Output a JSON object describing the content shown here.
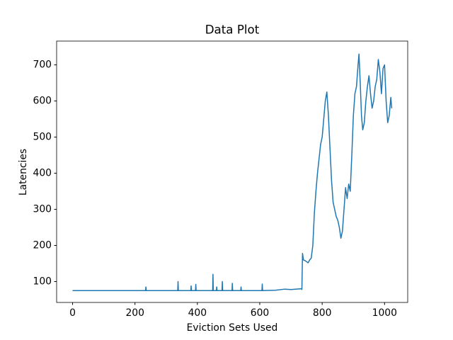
{
  "chart_data": {
    "type": "line",
    "title": "Data Plot",
    "x_label": "Eviction Sets Used",
    "y_label": "Latencies",
    "x": [
      0,
      234,
      235,
      236,
      337,
      338,
      339,
      379,
      380,
      381,
      394,
      395,
      396,
      449,
      450,
      451,
      461,
      462,
      463,
      479,
      480,
      481,
      511,
      512,
      513,
      539,
      540,
      541,
      607,
      608,
      609,
      650,
      680,
      700,
      734,
      735,
      737,
      740,
      745,
      750,
      755,
      760,
      765,
      770,
      775,
      780,
      785,
      790,
      795,
      800,
      805,
      810,
      815,
      820,
      825,
      830,
      835,
      840,
      845,
      850,
      855,
      860,
      865,
      870,
      875,
      880,
      885,
      890,
      895,
      900,
      905,
      910,
      915,
      918,
      922,
      926,
      930,
      935,
      940,
      945,
      950,
      955,
      960,
      965,
      970,
      975,
      980,
      985,
      990,
      995,
      1000,
      1005,
      1010,
      1015,
      1020,
      1023
    ],
    "series": [
      {
        "color": "#1f77b4",
        "values": [
          75,
          75,
          85,
          75,
          75,
          100,
          75,
          75,
          88,
          75,
          75,
          92,
          75,
          75,
          120,
          75,
          75,
          85,
          75,
          75,
          100,
          75,
          75,
          95,
          75,
          75,
          85,
          75,
          75,
          93,
          75,
          76,
          79,
          78,
          80,
          78,
          178,
          160,
          158,
          155,
          152,
          160,
          165,
          200,
          290,
          350,
          400,
          440,
          480,
          500,
          550,
          600,
          625,
          560,
          470,
          380,
          320,
          300,
          280,
          270,
          250,
          220,
          240,
          300,
          360,
          330,
          370,
          350,
          450,
          560,
          620,
          640,
          700,
          730,
          650,
          560,
          520,
          540,
          600,
          640,
          670,
          620,
          580,
          600,
          640,
          660,
          715,
          680,
          620,
          690,
          700,
          600,
          540,
          560,
          610,
          580
        ]
      }
    ],
    "xlim": [
      -51.15,
      1074.15
    ],
    "ylim": [
      42.1,
      765.9
    ],
    "xticks": [
      0,
      200,
      400,
      600,
      800,
      1000
    ],
    "yticks": [
      100,
      200,
      300,
      400,
      500,
      600,
      700
    ]
  }
}
